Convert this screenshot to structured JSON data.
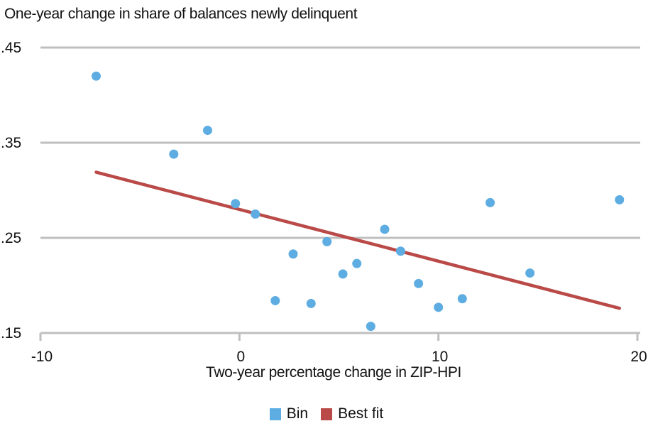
{
  "chart_data": {
    "type": "scatter",
    "title": "One-year change in share of balances newly delinquent",
    "xlabel": "Two-year percentage change in ZIP-HPI",
    "ylabel": "One-year change in share of balances newly delinquent",
    "xlim": [
      -10,
      20
    ],
    "ylim": [
      0.15,
      0.45
    ],
    "x_ticks": [
      "-10",
      "0",
      "10",
      "20"
    ],
    "y_ticks": [
      ".15",
      ".25",
      ".35",
      ".45"
    ],
    "grid": "horizontal",
    "legend_position": "bottom",
    "series": [
      {
        "name": "Bin",
        "type": "scatter",
        "color": "#5dade2",
        "points": [
          {
            "x": -7.2,
            "y": 0.42
          },
          {
            "x": -3.3,
            "y": 0.338
          },
          {
            "x": -1.6,
            "y": 0.363
          },
          {
            "x": -0.2,
            "y": 0.286
          },
          {
            "x": 0.8,
            "y": 0.275
          },
          {
            "x": 1.8,
            "y": 0.184
          },
          {
            "x": 2.7,
            "y": 0.233
          },
          {
            "x": 3.6,
            "y": 0.181
          },
          {
            "x": 4.4,
            "y": 0.246
          },
          {
            "x": 5.2,
            "y": 0.212
          },
          {
            "x": 5.9,
            "y": 0.223
          },
          {
            "x": 6.6,
            "y": 0.157
          },
          {
            "x": 7.3,
            "y": 0.259
          },
          {
            "x": 8.1,
            "y": 0.236
          },
          {
            "x": 9.0,
            "y": 0.202
          },
          {
            "x": 10.0,
            "y": 0.177
          },
          {
            "x": 11.2,
            "y": 0.186
          },
          {
            "x": 12.6,
            "y": 0.287
          },
          {
            "x": 14.6,
            "y": 0.213
          },
          {
            "x": 19.1,
            "y": 0.29
          }
        ]
      },
      {
        "name": "Best fit",
        "type": "line",
        "color": "#b94a48",
        "points": [
          {
            "x": -7.2,
            "y": 0.319
          },
          {
            "x": 19.1,
            "y": 0.176
          }
        ]
      }
    ]
  },
  "legend": {
    "items": [
      {
        "label": "Bin",
        "color": "#5dade2"
      },
      {
        "label": "Best fit",
        "color": "#b94a48"
      }
    ]
  }
}
